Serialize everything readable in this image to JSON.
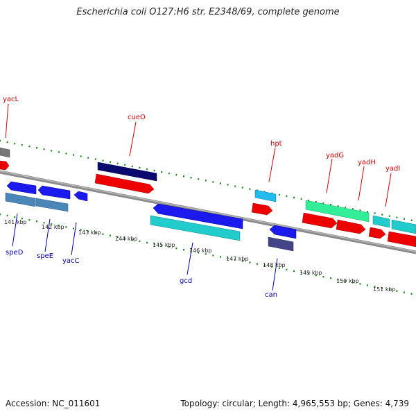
{
  "title": "Escherichia coli O127:H6 str. E2348/69, complete genome",
  "footer": {
    "accession": "Accession: NC_011601",
    "summary": "Topology: circular; Length: 4,965,553 bp; Genes: 4,739"
  },
  "colors": {
    "backbone": "#8a8a8a",
    "tick": "#1a8a1a",
    "top_gene_label": "#cc0000",
    "bottom_gene_label": "#0000aa",
    "kbp_label": "#222222"
  },
  "kbp_labels": [
    "141 kbp",
    "142 kbp",
    "143 kbp",
    "144 kbp",
    "145 kbp",
    "146 kbp",
    "147 kbp",
    "148 kbp",
    "149 kbp",
    "150 kbp",
    "151 kbp"
  ],
  "top_genes": [
    {
      "name": "yacL"
    },
    {
      "name": "cueO"
    },
    {
      "name": "hpt"
    },
    {
      "name": "yadG"
    },
    {
      "name": "yadH"
    },
    {
      "name": "yadI"
    }
  ],
  "bottom_genes": [
    {
      "name": "speD"
    },
    {
      "name": "speE"
    },
    {
      "name": "yacC"
    },
    {
      "name": "gcd"
    },
    {
      "name": "can"
    }
  ]
}
